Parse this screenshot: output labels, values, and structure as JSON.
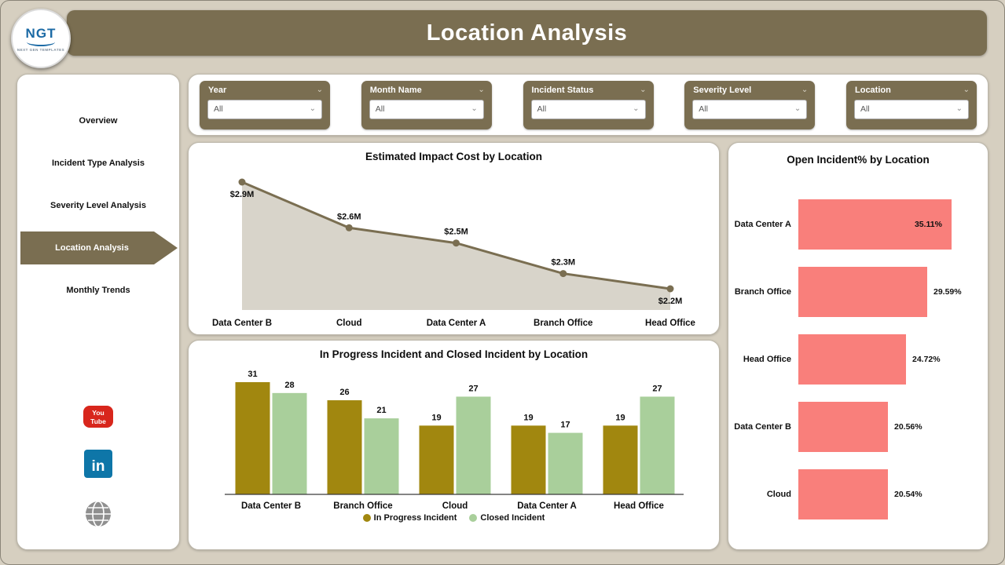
{
  "app": {
    "title": "Location Analysis",
    "logo_text": "NGT",
    "logo_subtext": "NEXT GEN TEMPLATES"
  },
  "colors": {
    "accent_olive": "#7a6e51",
    "background_tan": "#d6cfc0",
    "in_progress_gold": "#a1870f",
    "closed_green": "#a9cf9b",
    "open_incident_salmon": "#f97f7b",
    "area_fill_gray": "#d8d4ca",
    "youtube_red": "#d8261c",
    "linkedin_blue": "#0e76a8"
  },
  "sidebar": {
    "items": [
      {
        "label": "Overview",
        "active": false
      },
      {
        "label": "Incident Type Analysis",
        "active": false
      },
      {
        "label": "Severity Level Analysis",
        "active": false
      },
      {
        "label": "Location Analysis",
        "active": true
      },
      {
        "label": "Monthly Trends",
        "active": false
      }
    ],
    "social_icons": [
      "youtube",
      "linkedin",
      "website-globe"
    ]
  },
  "filters": [
    {
      "label": "Year",
      "value": "All"
    },
    {
      "label": "Month Name",
      "value": "All"
    },
    {
      "label": "Incident Status",
      "value": "All"
    },
    {
      "label": "Severity Level",
      "value": "All"
    },
    {
      "label": "Location",
      "value": "All"
    }
  ],
  "chart_data": [
    {
      "type": "area",
      "title": "Estimated Impact Cost by Location",
      "categories": [
        "Data Center B",
        "Cloud",
        "Data Center A",
        "Branch Office",
        "Head Office"
      ],
      "values": [
        2.9,
        2.6,
        2.5,
        2.3,
        2.2
      ],
      "labels": [
        "$2.9M",
        "$2.6M",
        "$2.5M",
        "$2.3M",
        "$2.2M"
      ],
      "label_positions": [
        "below",
        "above",
        "above",
        "above",
        "below"
      ],
      "line_color": "#7a6e51",
      "fill_color": "#d8d4ca",
      "ylim": [
        2.2,
        2.9
      ],
      "grid": false
    },
    {
      "type": "bar",
      "title": "In Progress Incident and Closed Incident by Location",
      "categories": [
        "Data Center B",
        "Branch Office",
        "Cloud",
        "Data Center A",
        "Head Office"
      ],
      "series": [
        {
          "name": "In Progress Incident",
          "color": "#a1870f",
          "values": [
            31,
            26,
            19,
            19,
            19
          ]
        },
        {
          "name": "Closed Incident",
          "color": "#a9cf9b",
          "values": [
            28,
            21,
            27,
            17,
            27
          ]
        }
      ],
      "legend_position": "bottom",
      "ylim": [
        0,
        31
      ],
      "grid": false
    },
    {
      "type": "bar-horizontal",
      "title": "Open Incident% by Location",
      "categories": [
        "Data Center A",
        "Branch Office",
        "Head Office",
        "Data Center B",
        "Cloud"
      ],
      "values": [
        35.11,
        29.59,
        24.72,
        20.56,
        20.54
      ],
      "labels": [
        "35.11%",
        "29.59%",
        "24.72%",
        "20.56%",
        "20.54%"
      ],
      "bar_color": "#f97f7b",
      "grid": false
    }
  ]
}
